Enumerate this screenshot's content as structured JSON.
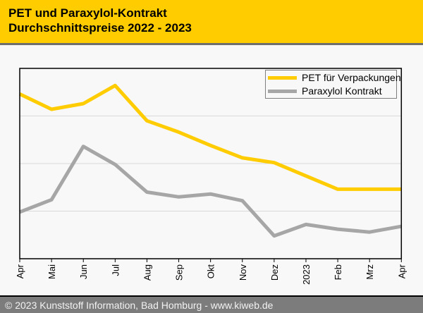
{
  "header": {
    "title_line1": "PET und Paraxylol-Kontrakt",
    "title_line2": "Durchschnittspreise 2022 - 2023"
  },
  "footer": {
    "text": "© 2023 Kunststoff Information, Bad Homburg - www.kiweb.de"
  },
  "colors": {
    "header_background": "#ffcc00",
    "pet_line": "#ffcc00",
    "paraxylol_line": "#a6a6a6",
    "plot_border": "#000000",
    "gridline": "#d9d9d9",
    "footer_background": "#7c7c7c",
    "page_background": "#f8f8f8",
    "legend_border": "#7f7f7f"
  },
  "chart_data": {
    "type": "line",
    "title": "PET und Paraxylol-Kontrakt Durchschnittspreise 2022 - 2023",
    "categories": [
      "Apr",
      "Mai",
      "Jun",
      "Jul",
      "Aug",
      "Sep",
      "Okt",
      "Nov",
      "Dez",
      "2023",
      "Feb",
      "Mrz",
      "Apr"
    ],
    "series": [
      {
        "name": "PET für Verpackungen",
        "color": "#ffcc00",
        "values": [
          86.5,
          78.5,
          81.5,
          91,
          72.5,
          66.5,
          59.5,
          53,
          50.5,
          43.5,
          36.5,
          36.5,
          36.5
        ]
      },
      {
        "name": "Paraxylol Kontrakt",
        "color": "#a6a6a6",
        "values": [
          24.5,
          31,
          59,
          49.5,
          35,
          32.5,
          34,
          30.5,
          12,
          18,
          15.5,
          14,
          17
        ]
      }
    ],
    "xlabel": "",
    "ylabel": "",
    "ylim": [
      0,
      100
    ],
    "y_axis_tick_labels_visible": false,
    "y_units": "relative (no y-axis scale shown in image); values are percent of plot height",
    "gridlines_y": [
      25,
      50,
      75
    ],
    "grid": "horizontal-only",
    "legend_position": "top-right",
    "x_tick_marks": true,
    "x_label_rotation_deg": 90
  }
}
